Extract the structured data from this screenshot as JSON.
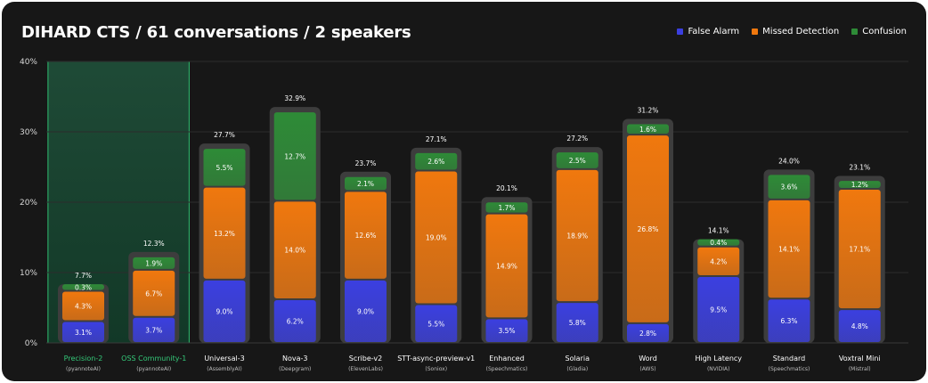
{
  "chart_data": {
    "type": "bar",
    "stacked": true,
    "title": "DIHARD CTS / 61 conversations / 2 speakers",
    "xlabel": "",
    "ylabel": "",
    "ylim": [
      0,
      40
    ],
    "yticks": [
      0,
      10,
      20,
      30,
      40
    ],
    "ytick_labels": [
      "0%",
      "10%",
      "20%",
      "30%",
      "40%"
    ],
    "legend_position": "top-right",
    "highlighted_categories": [
      0,
      1
    ],
    "categories": [
      "Precision-2",
      "OSS Community-1",
      "Universal-3",
      "Nova-3",
      "Scribe-v2",
      "STT-async-preview-v1",
      "Enhanced",
      "Solaria",
      "Word",
      "High Latency",
      "Standard",
      "Voxtral Mini"
    ],
    "providers": [
      "(pyannoteAI)",
      "(pyannoteAI)",
      "(AssemblyAI)",
      "(Deepgram)",
      "(ElevenLabs)",
      "(Soniox)",
      "(Speechmatics)",
      "(Gladia)",
      "(AWS)",
      "(NVIDIA)",
      "(Speechmatics)",
      "(Mistral)"
    ],
    "series": [
      {
        "name": "False Alarm",
        "color": "#3b3fe0",
        "values": [
          3.1,
          3.7,
          9.0,
          6.2,
          9.0,
          5.5,
          3.5,
          5.8,
          2.8,
          9.5,
          6.3,
          4.8
        ],
        "labels": [
          "3.1%",
          "3.7%",
          "9.0%",
          "6.2%",
          "9.0%",
          "5.5%",
          "3.5%",
          "5.8%",
          "2.8%",
          "9.5%",
          "6.3%",
          "4.8%"
        ]
      },
      {
        "name": "Missed Detection",
        "color": "#f0780e",
        "values": [
          4.3,
          6.7,
          13.2,
          14.0,
          12.6,
          19.0,
          14.9,
          18.9,
          26.8,
          4.2,
          14.1,
          17.1
        ],
        "labels": [
          "4.3%",
          "6.7%",
          "13.2%",
          "14.0%",
          "12.6%",
          "19.0%",
          "14.9%",
          "18.9%",
          "26.8%",
          "4.2%",
          "14.1%",
          "17.1%"
        ]
      },
      {
        "name": "Confusion",
        "color": "#2e8b37",
        "values": [
          0.3,
          1.9,
          5.5,
          12.7,
          2.1,
          2.6,
          1.7,
          2.5,
          1.6,
          0.4,
          3.6,
          1.2
        ],
        "labels": [
          "0.3%",
          "1.9%",
          "5.5%",
          "12.7%",
          "2.1%",
          "2.6%",
          "1.7%",
          "2.5%",
          "1.6%",
          "0.4%",
          "3.6%",
          "1.2%"
        ]
      }
    ],
    "totals": [
      7.7,
      12.3,
      27.7,
      32.9,
      23.7,
      27.1,
      20.1,
      27.2,
      31.2,
      14.1,
      24.0,
      23.1
    ],
    "total_labels": [
      "7.7%",
      "12.3%",
      "27.7%",
      "32.9%",
      "23.7%",
      "27.1%",
      "20.1%",
      "27.2%",
      "31.2%",
      "14.1%",
      "24.0%",
      "23.1%"
    ]
  }
}
